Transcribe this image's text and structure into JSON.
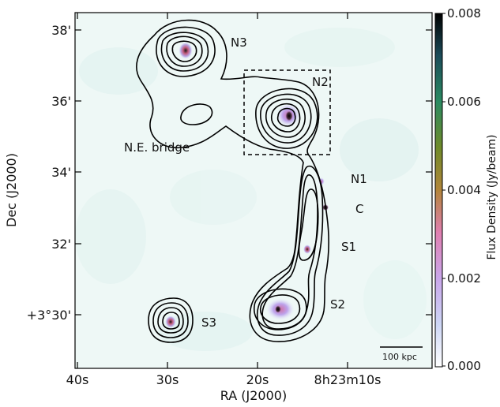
{
  "chart_data": {
    "type": "heatmap",
    "xlabel": "RA (J2000)",
    "ylabel": "Dec (J2000)",
    "x_ticks": [
      "40s",
      "30s",
      "20s",
      "8h23m10s"
    ],
    "y_ticks": [
      "+3°30'",
      "32'",
      "34'",
      "36'",
      "38'"
    ],
    "colorbar": {
      "label": "Flux Density (Jy/beam)",
      "range": [
        0.0,
        0.008
      ],
      "ticks": [
        "0.000",
        "0.002",
        "0.004",
        "0.006",
        "0.008"
      ]
    },
    "annotations": [
      "N3",
      "N2",
      "N.E. bridge",
      "N1",
      "C",
      "S1",
      "S2",
      "S3"
    ],
    "scale_bar": "100 kpc",
    "colors": {
      "contour": "#000000",
      "background_noise": "#e3f3ef"
    }
  }
}
